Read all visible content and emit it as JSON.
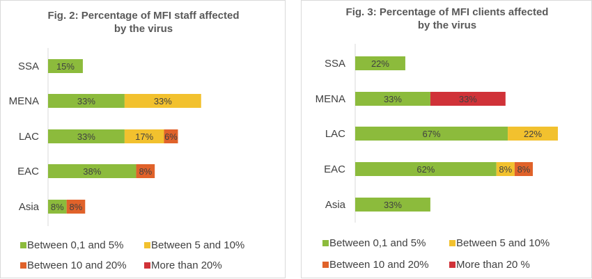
{
  "colors": {
    "Between 0,1 and 5%": "#8cbb3c",
    "Between 5 and 10%": "#f2c12e",
    "Between 10 and 20%": "#e0622a",
    "More than 20%": "#d03238"
  },
  "chart_data": [
    {
      "type": "bar",
      "orientation": "horizontal",
      "stacked": true,
      "title": [
        "Fig. 2: Percentage of MFI staff affected",
        "by the virus"
      ],
      "categories": [
        "SSA",
        "MENA",
        "LAC",
        "EAC",
        "Asia"
      ],
      "series": [
        {
          "name": "Between 0,1 and 5%",
          "values": [
            15,
            33,
            33,
            38,
            8
          ],
          "labels": [
            "15%",
            "33%",
            "33%",
            "38%",
            "8%"
          ]
        },
        {
          "name": "Between 5 and 10%",
          "values": [
            0,
            33,
            17,
            0,
            0
          ],
          "labels": [
            "",
            "33%",
            "17%",
            "",
            ""
          ]
        },
        {
          "name": "Between 10 and 20%",
          "values": [
            0,
            0,
            6,
            8,
            8
          ],
          "labels": [
            "",
            "",
            "6%",
            "8%",
            "8%"
          ]
        },
        {
          "name": "More than 20%",
          "values": [
            0,
            0,
            0,
            0,
            0
          ],
          "labels": [
            "",
            "",
            "",
            "",
            ""
          ]
        }
      ],
      "xlim": [
        0,
        100
      ],
      "legend_position": "bottom",
      "legend": [
        "Between 0,1 and 5%",
        "Between 5 and 10%",
        "Between 10 and 20%",
        "More than 20%"
      ]
    },
    {
      "type": "bar",
      "orientation": "horizontal",
      "stacked": true,
      "title": [
        "Fig. 3: Percentage of MFI clients affected",
        "by the virus"
      ],
      "categories": [
        "SSA",
        "MENA",
        "LAC",
        "EAC",
        "Asia"
      ],
      "series": [
        {
          "name": "Between 0,1 and 5%",
          "values": [
            22,
            33,
            67,
            62,
            33
          ],
          "labels": [
            "22%",
            "33%",
            "67%",
            "62%",
            "33%"
          ]
        },
        {
          "name": "Between 5 and 10%",
          "values": [
            0,
            0,
            22,
            8,
            0
          ],
          "labels": [
            "",
            "",
            "22%",
            "8%",
            ""
          ]
        },
        {
          "name": "Between 10 and 20%",
          "values": [
            0,
            0,
            0,
            8,
            0
          ],
          "labels": [
            "",
            "",
            "",
            "8%",
            ""
          ]
        },
        {
          "name": "More than 20 %",
          "values": [
            0,
            33,
            0,
            0,
            0
          ],
          "labels": [
            "",
            "33%",
            "",
            "",
            ""
          ]
        }
      ],
      "xlim": [
        0,
        100
      ],
      "legend_position": "bottom",
      "legend": [
        "Between 0,1 and 5%",
        "Between 5 and 10%",
        "Between 10 and 20%",
        "More than 20 %"
      ]
    }
  ]
}
